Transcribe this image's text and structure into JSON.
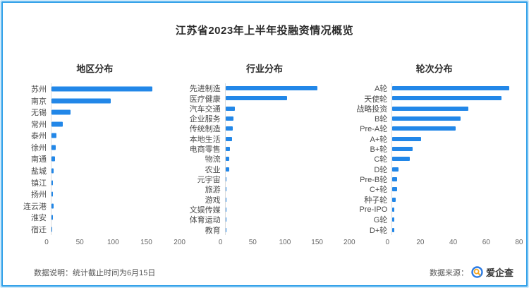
{
  "header": {
    "title": "江苏省2023年上半年投融资情况概览"
  },
  "footer": {
    "note": "数据说明：统计截止时间为6月15日",
    "source_label": "数据来源：",
    "source_name": "爱企查",
    "logo_icon": "aiqicha-magnifier-logo"
  },
  "colors": {
    "bar": "#2287E8",
    "frame_border": "#2E9FE8",
    "frame_halo": "#CFEAFB",
    "title_text": "#2B2B2B",
    "label_text": "#4A4A4A",
    "tick_text": "#666666",
    "logo_ring": "#2B7BE4",
    "logo_glass": "#F5A623"
  },
  "chart_data": [
    {
      "type": "bar",
      "orientation": "horizontal",
      "title": "地区分布",
      "categories": [
        "苏州",
        "南京",
        "无锡",
        "常州",
        "泰州",
        "徐州",
        "南通",
        "盐城",
        "镇江",
        "扬州",
        "连云港",
        "淮安",
        "宿迁"
      ],
      "values": [
        158,
        93,
        30,
        18,
        8,
        7,
        6,
        3,
        2,
        2,
        3,
        2,
        1
      ],
      "xlim": [
        0,
        200
      ],
      "xticks": [
        0,
        50,
        100,
        150,
        200
      ],
      "grid": false,
      "legend": "none"
    },
    {
      "type": "bar",
      "orientation": "horizontal",
      "title": "行业分布",
      "categories": [
        "先进制造",
        "医疗健康",
        "汽车交通",
        "企业服务",
        "传统制造",
        "本地生活",
        "电商零售",
        "物流",
        "农业",
        "元宇宙",
        "旅游",
        "游戏",
        "文娱传媒",
        "体育运动",
        "教育"
      ],
      "values": [
        149,
        100,
        15,
        13,
        12,
        11,
        7,
        6,
        6,
        2,
        2,
        2,
        2,
        1,
        1
      ],
      "xlim": [
        0,
        200
      ],
      "xticks": [
        0,
        50,
        100,
        150,
        200
      ],
      "grid": false,
      "legend": "none"
    },
    {
      "type": "bar",
      "orientation": "horizontal",
      "title": "轮次分布",
      "categories": [
        "A轮",
        "天使轮",
        "战略投资",
        "B轮",
        "Pre-A轮",
        "A+轮",
        "B+轮",
        "C轮",
        "D轮",
        "Pre-B轮",
        "C+轮",
        "种子轮",
        "Pre-IPO",
        "G轮",
        "D+轮"
      ],
      "values": [
        74,
        69,
        48,
        43,
        40,
        18,
        13,
        11,
        4,
        3,
        3,
        2,
        1,
        1,
        1
      ],
      "xlim": [
        0,
        80
      ],
      "xticks": [
        0,
        20,
        40,
        60,
        80
      ],
      "grid": false,
      "legend": "none"
    }
  ]
}
